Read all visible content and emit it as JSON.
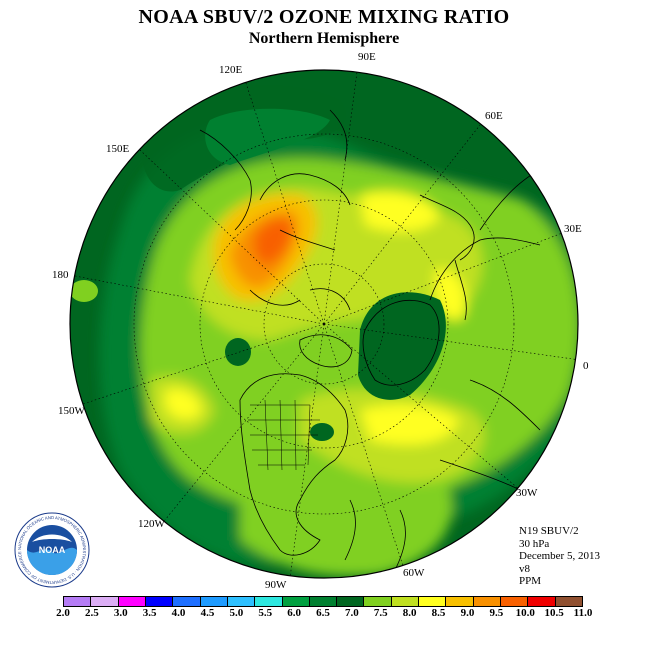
{
  "title": "NOAA SBUV/2 OZONE MIXING RATIO",
  "subtitle": "Northern Hemisphere",
  "longitude_labels": [
    "90E",
    "60E",
    "30E",
    "0",
    "30W",
    "60W",
    "90W",
    "120W",
    "150W",
    "180",
    "150E",
    "120E"
  ],
  "info": {
    "instrument": "N19 SBUV/2",
    "pressure": "30 hPa",
    "date": "December 5, 2013",
    "version": "v8",
    "units": "PPM"
  },
  "logo": {
    "text": "NOAA",
    "ring_text": "NATIONAL OCEANIC AND ATMOSPHERIC ADMINISTRATION · U.S. DEPARTMENT OF COMMERCE"
  },
  "colorbar": {
    "ticks": [
      "2.0",
      "2.5",
      "3.0",
      "3.5",
      "4.0",
      "4.5",
      "5.0",
      "5.5",
      "6.0",
      "6.5",
      "7.0",
      "7.5",
      "8.0",
      "8.5",
      "9.0",
      "9.5",
      "10.0",
      "10.5",
      "11.0"
    ],
    "colors": [
      "#b57cf5",
      "#dcaef5",
      "#ff00ff",
      "#0000ff",
      "#1e6fff",
      "#1e9bff",
      "#2ec0ff",
      "#2ee8e0",
      "#00a040",
      "#008030",
      "#006620",
      "#80d020",
      "#c0e020",
      "#ffff20",
      "#f8c000",
      "#f89000",
      "#f86000",
      "#f00000",
      "#905030"
    ]
  }
}
